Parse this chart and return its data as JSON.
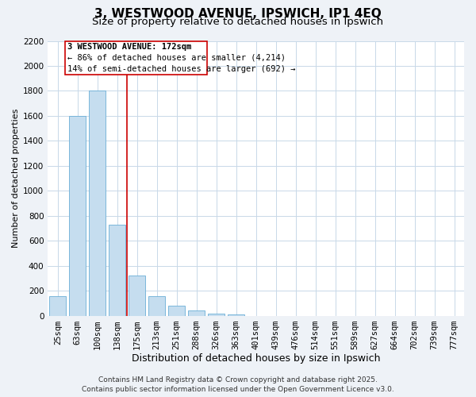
{
  "title": "3, WESTWOOD AVENUE, IPSWICH, IP1 4EQ",
  "subtitle": "Size of property relative to detached houses in Ipswich",
  "xlabel": "Distribution of detached houses by size in Ipswich",
  "ylabel": "Number of detached properties",
  "bar_labels": [
    "25sqm",
    "63sqm",
    "100sqm",
    "138sqm",
    "175sqm",
    "213sqm",
    "251sqm",
    "288sqm",
    "326sqm",
    "363sqm",
    "401sqm",
    "439sqm",
    "476sqm",
    "514sqm",
    "551sqm",
    "589sqm",
    "627sqm",
    "664sqm",
    "702sqm",
    "739sqm",
    "777sqm"
  ],
  "bar_values": [
    160,
    1600,
    1800,
    730,
    325,
    160,
    85,
    45,
    20,
    10,
    0,
    0,
    0,
    0,
    0,
    0,
    0,
    0,
    0,
    0,
    0
  ],
  "bar_color": "#c5ddef",
  "bar_edge_color": "#6aaed6",
  "ylim": [
    0,
    2200
  ],
  "yticks": [
    0,
    200,
    400,
    600,
    800,
    1000,
    1200,
    1400,
    1600,
    1800,
    2000,
    2200
  ],
  "vline_x_index": 3.5,
  "vline_color": "#cc0000",
  "annotation_title": "3 WESTWOOD AVENUE: 172sqm",
  "annotation_line1": "← 86% of detached houses are smaller (4,214)",
  "annotation_line2": "14% of semi-detached houses are larger (692) →",
  "annotation_box_color": "#cc0000",
  "footer_line1": "Contains HM Land Registry data © Crown copyright and database right 2025.",
  "footer_line2": "Contains public sector information licensed under the Open Government Licence v3.0.",
  "background_color": "#eef2f7",
  "plot_bg_color": "#ffffff",
  "grid_color": "#c8d8e8",
  "title_fontsize": 11,
  "subtitle_fontsize": 9.5,
  "xlabel_fontsize": 9,
  "ylabel_fontsize": 8,
  "tick_fontsize": 7.5,
  "footer_fontsize": 6.5
}
